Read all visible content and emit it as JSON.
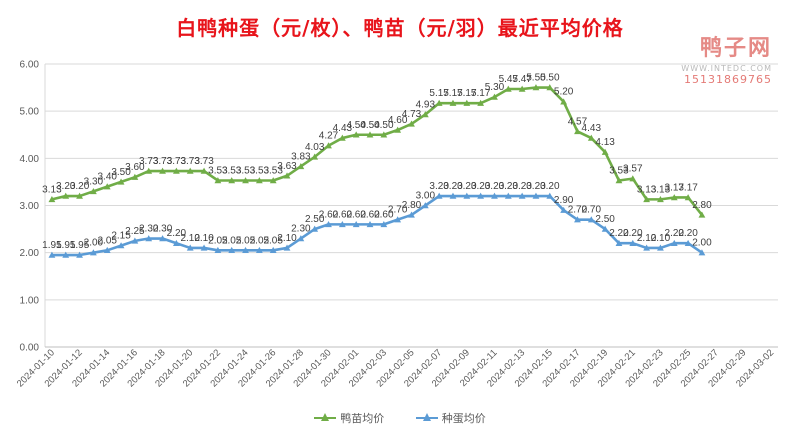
{
  "title": "白鸭种蛋（元/枚）、鸭苗（元/羽）最近平均价格",
  "watermark": {
    "name": "鸭子网",
    "url": "WWW.INTEDC.COM",
    "phone": "15131869765"
  },
  "chart_data": {
    "type": "line",
    "title": "白鸭种蛋（元/枚）、鸭苗（元/羽）最近平均价格",
    "xlabel": "",
    "ylabel": "",
    "ylim": [
      0,
      6
    ],
    "yticks": [
      "0.00",
      "1.00",
      "2.00",
      "3.00",
      "4.00",
      "5.00",
      "6.00"
    ],
    "grid": true,
    "legend_position": "bottom",
    "x_range": [
      "2024-01-10",
      "2024-03-02"
    ],
    "x_tick_labels": [
      "2024-01-10",
      "2024-01-12",
      "2024-01-14",
      "2024-01-16",
      "2024-01-18",
      "2024-01-20",
      "2024-01-22",
      "2024-01-24",
      "2024-01-26",
      "2024-01-28",
      "2024-01-30",
      "2024-02-01",
      "2024-02-03",
      "2024-02-05",
      "2024-02-07",
      "2024-02-09",
      "2024-02-11",
      "2024-02-13",
      "2024-02-15",
      "2024-02-17",
      "2024-02-19",
      "2024-02-21",
      "2024-02-23",
      "2024-02-25",
      "2024-02-27",
      "2024-02-29",
      "2024-03-02"
    ],
    "x": [
      "2024-01-10",
      "2024-01-11",
      "2024-01-12",
      "2024-01-13",
      "2024-01-14",
      "2024-01-15",
      "2024-01-16",
      "2024-01-17",
      "2024-01-18",
      "2024-01-19",
      "2024-01-20",
      "2024-01-21",
      "2024-01-22",
      "2024-01-23",
      "2024-01-24",
      "2024-01-25",
      "2024-01-26",
      "2024-01-27",
      "2024-01-28",
      "2024-01-29",
      "2024-01-30",
      "2024-01-31",
      "2024-02-01",
      "2024-02-02",
      "2024-02-03",
      "2024-02-04",
      "2024-02-05",
      "2024-02-06",
      "2024-02-07",
      "2024-02-08",
      "2024-02-09",
      "2024-02-10",
      "2024-02-11",
      "2024-02-12",
      "2024-02-13",
      "2024-02-14",
      "2024-02-15",
      "2024-02-16",
      "2024-02-17",
      "2024-02-18",
      "2024-02-19",
      "2024-02-20",
      "2024-02-21",
      "2024-02-22",
      "2024-02-23",
      "2024-02-24",
      "2024-02-25",
      "2024-02-26"
    ],
    "series": [
      {
        "name": "鸭苗均价",
        "color": "#70ad47",
        "marker": "triangle",
        "values": [
          3.13,
          3.2,
          3.2,
          3.3,
          3.4,
          3.5,
          3.6,
          3.73,
          3.73,
          3.73,
          3.73,
          3.73,
          3.53,
          3.53,
          3.53,
          3.53,
          3.53,
          3.63,
          3.83,
          4.03,
          4.27,
          4.43,
          4.5,
          4.5,
          4.5,
          4.6,
          4.73,
          4.93,
          5.17,
          5.17,
          5.17,
          5.17,
          5.3,
          5.47,
          5.47,
          5.5,
          5.5,
          5.2,
          4.57,
          4.43,
          4.13,
          3.53,
          3.57,
          3.13,
          3.13,
          3.17,
          3.17,
          2.8
        ],
        "labels": [
          "3.13",
          "3.20",
          "3.20",
          "3.30",
          "3.40",
          "3.50",
          "3.60",
          "3.73",
          "3.73",
          "3.73",
          "3.73",
          "3.73",
          "3.53",
          "3.53",
          "3.53",
          "3.53",
          "3.53",
          "3.63",
          "3.83",
          "4.03",
          "4.27",
          "4.43",
          "4.50",
          "4.50",
          "4.50",
          "4.60",
          "4.73",
          "4.93",
          "5.17",
          "5.17",
          "5.17",
          "5.17",
          "5.30",
          "5.47",
          "5.47",
          "5.50",
          "5.50",
          "5.20",
          "4.57",
          "4.43",
          "4.13",
          "3.53",
          "3.57",
          "3.13",
          "3.13",
          "3.17",
          "3.17",
          "2.80"
        ]
      },
      {
        "name": "种蛋均价",
        "color": "#5b9bd5",
        "marker": "triangle",
        "values": [
          1.95,
          1.95,
          1.95,
          2.0,
          2.05,
          2.15,
          2.25,
          2.3,
          2.3,
          2.2,
          2.1,
          2.1,
          2.05,
          2.05,
          2.05,
          2.05,
          2.05,
          2.1,
          2.3,
          2.5,
          2.6,
          2.6,
          2.6,
          2.6,
          2.6,
          2.7,
          2.8,
          3.0,
          3.2,
          3.2,
          3.2,
          3.2,
          3.2,
          3.2,
          3.2,
          3.2,
          3.2,
          2.9,
          2.7,
          2.7,
          2.5,
          2.2,
          2.2,
          2.1,
          2.1,
          2.2,
          2.2,
          2.0
        ],
        "labels": [
          "1.95",
          "1.95",
          "1.95",
          "2.00",
          "2.05",
          "2.15",
          "2.25",
          "2.30",
          "2.30",
          "2.20",
          "2.10",
          "2.10",
          "2.05",
          "2.05",
          "2.05",
          "2.05",
          "2.05",
          "2.10",
          "2.30",
          "2.50",
          "2.60",
          "2.60",
          "2.60",
          "2.60",
          "2.60",
          "2.70",
          "2.80",
          "3.00",
          "3.20",
          "3.20",
          "3.20",
          "3.20",
          "3.20",
          "3.20",
          "3.20",
          "3.20",
          "3.20",
          "2.90",
          "2.70",
          "2.70",
          "2.50",
          "2.20",
          "2.20",
          "2.10",
          "2.10",
          "2.20",
          "2.20",
          "2.00"
        ]
      }
    ]
  }
}
